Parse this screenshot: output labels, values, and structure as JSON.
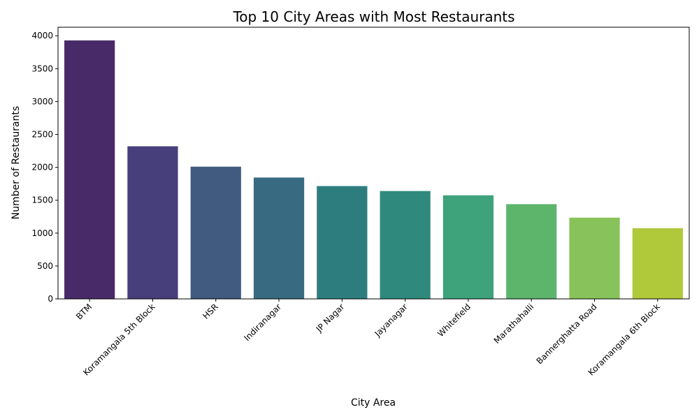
{
  "chart_data": {
    "type": "bar",
    "title": "Top 10 City Areas with Most Restaurants",
    "xlabel": "City Area",
    "ylabel": "Number of Restaurants",
    "categories": [
      "BTM",
      "Koramangala 5th Block",
      "HSR",
      "Indiranagar",
      "JP Nagar",
      "Jayanagar",
      "Whitefield",
      "Marathahalli",
      "Bannerghatta Road",
      "Koramangala 6th Block"
    ],
    "values": [
      3930,
      2320,
      2010,
      1845,
      1715,
      1640,
      1575,
      1440,
      1235,
      1075
    ],
    "ylim": [
      0,
      4130
    ],
    "yticks": [
      0,
      500,
      1000,
      1500,
      2000,
      2500,
      3000,
      3500,
      4000
    ],
    "grid": false,
    "colors": [
      "#482a68",
      "#473f7b",
      "#405a80",
      "#386b81",
      "#2d7d7f",
      "#2f8a7d",
      "#3ea27a",
      "#5db56b",
      "#87c35a",
      "#b0c93a"
    ]
  }
}
